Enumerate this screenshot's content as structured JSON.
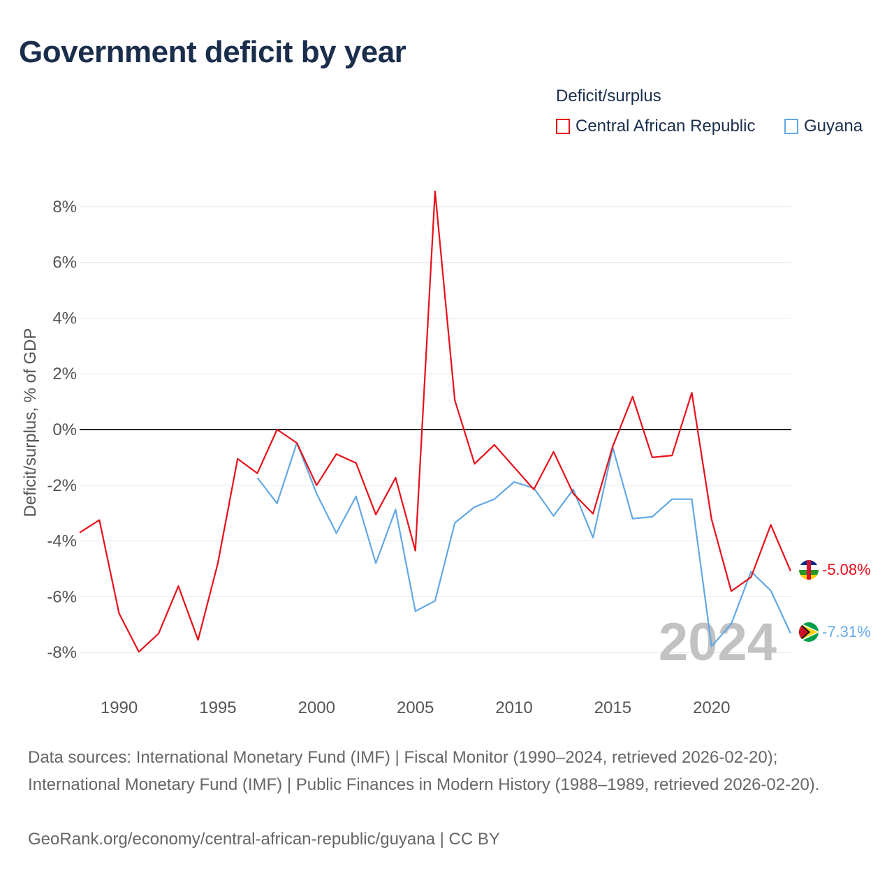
{
  "title": "Government deficit by year",
  "legend": {
    "title": "Deficit/surplus",
    "items": [
      {
        "label": "Central African Republic",
        "color": "#e8101a"
      },
      {
        "label": "Guyana",
        "color": "#62a8e5"
      }
    ]
  },
  "footer": {
    "sources": "Data sources: International Monetary Fund (IMF) | Fiscal Monitor (1990–2024, retrieved 2026-02-20); International Monetary Fund (IMF) | Public Finances in Modern History (1988–1989, retrieved 2026-02-20).",
    "credit": "GeoRank.org/economy/central-african-republic/guyana | CC BY"
  },
  "chart_data": {
    "type": "line",
    "title": "Government deficit by year",
    "ylabel": "Deficit/surplus, % of GDP",
    "xlabel": "",
    "xlim": [
      1988,
      2024.5
    ],
    "ylim": [
      -9,
      9
    ],
    "yticks": [
      8,
      6,
      4,
      2,
      0,
      -2,
      -4,
      -6,
      -8
    ],
    "ytick_labels": [
      "8%",
      "6%",
      "4%",
      "2%",
      "0%",
      "-2%",
      "-4%",
      "-6%",
      "-8%"
    ],
    "xticks": [
      1990,
      1995,
      2000,
      2005,
      2010,
      2015,
      2020
    ],
    "xtick_labels": [
      "1990",
      "1995",
      "2000",
      "2005",
      "2010",
      "2015",
      "2020"
    ],
    "year_watermark": "2024",
    "series": [
      {
        "name": "Central African Republic",
        "color": "#e8101a",
        "end_label": "-5.08%",
        "x": [
          1988,
          1989,
          1990,
          1991,
          1992,
          1993,
          1994,
          1995,
          1996,
          1997,
          1998,
          1999,
          2000,
          2001,
          2002,
          2003,
          2004,
          2005,
          2006,
          2007,
          2008,
          2009,
          2010,
          2011,
          2012,
          2013,
          2014,
          2015,
          2016,
          2017,
          2018,
          2019,
          2020,
          2021,
          2022,
          2023,
          2024
        ],
        "values": [
          -3.7,
          -3.25,
          -6.6,
          -7.98,
          -7.32,
          -5.62,
          -7.55,
          -4.8,
          -1.05,
          -1.57,
          0.0,
          -0.48,
          -2.0,
          -0.88,
          -1.2,
          -3.05,
          -1.73,
          -4.35,
          8.55,
          1.05,
          -1.23,
          -0.55,
          -1.35,
          -2.15,
          -0.8,
          -2.3,
          -3.02,
          -0.6,
          1.18,
          -1.0,
          -0.93,
          1.32,
          -3.22,
          -5.8,
          -5.3,
          -3.42,
          -5.08
        ]
      },
      {
        "name": "Guyana",
        "color": "#62a8e5",
        "end_label": "-7.31%",
        "x": [
          1997,
          1998,
          1999,
          2000,
          2001,
          2002,
          2003,
          2004,
          2005,
          2006,
          2007,
          2008,
          2009,
          2010,
          2011,
          2012,
          2013,
          2014,
          2015,
          2016,
          2017,
          2018,
          2019,
          2020,
          2021,
          2022,
          2023,
          2024
        ],
        "values": [
          -1.73,
          -2.65,
          -0.48,
          -2.3,
          -3.72,
          -2.4,
          -4.8,
          -2.87,
          -6.52,
          -6.15,
          -3.35,
          -2.78,
          -2.5,
          -1.88,
          -2.1,
          -3.1,
          -2.15,
          -3.88,
          -0.65,
          -3.2,
          -3.13,
          -2.5,
          -2.5,
          -7.78,
          -6.98,
          -5.1,
          -5.78,
          -7.31
        ]
      }
    ]
  }
}
